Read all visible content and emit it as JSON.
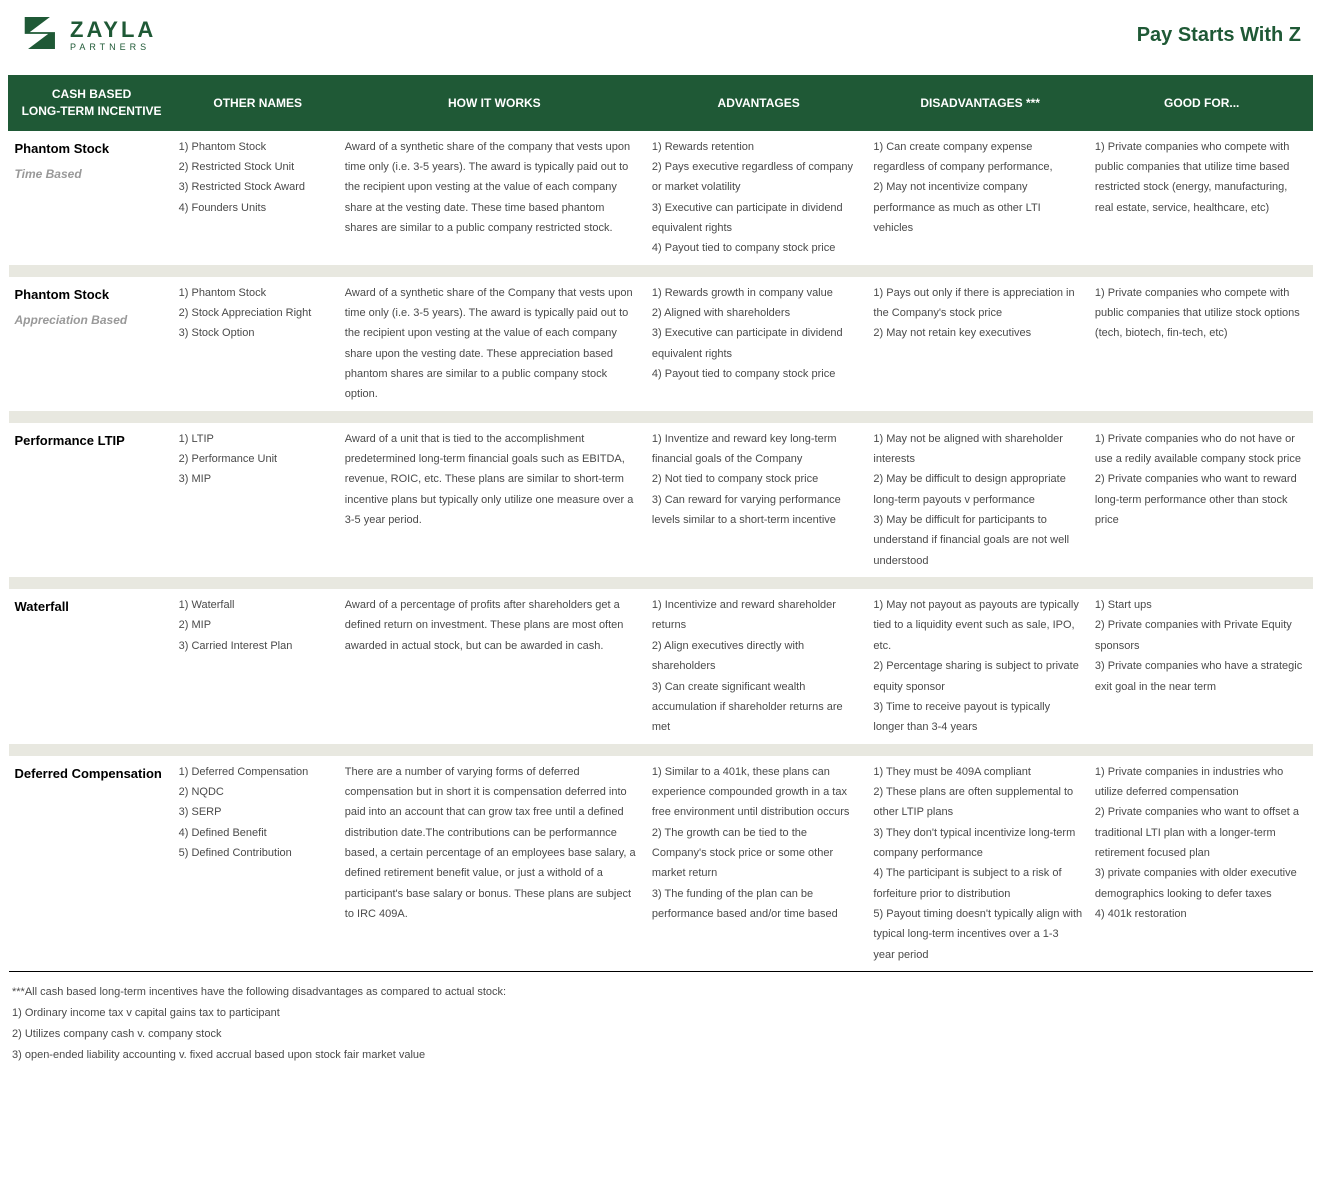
{
  "brand": {
    "logo_main": "ZAYLA",
    "logo_sub": "PARTNERS",
    "tagline": "Pay Starts With Z",
    "color_primary": "#1f5936"
  },
  "table": {
    "headers": {
      "col1_line1": "CASH BASED",
      "col1_line2": "LONG-TERM INCENTIVE",
      "col2": "OTHER NAMES",
      "col3": "HOW IT WORKS",
      "col4": "ADVANTAGES",
      "col5": "DISADVANTAGES ***",
      "col6": "GOOD FOR..."
    },
    "rows": [
      {
        "title": "Phantom Stock",
        "subtitle": "Time Based",
        "other_names": [
          "1) Phantom Stock",
          "2) Restricted Stock Unit",
          "3) Restricted Stock Award",
          "4) Founders Units"
        ],
        "how": "Award of a synthetic share of the company that vests upon time only (i.e. 3-5 years). The award is typically paid out to the recipient upon vesting at the value of each company share at the vesting date. These time based phantom shares are similar to a public company restricted stock.",
        "advantages": [
          "1) Rewards retention",
          "2) Pays executive regardless of company or market volatility",
          "3) Executive can participate in dividend equivalent rights",
          "4) Payout tied to company stock price"
        ],
        "disadvantages": [
          "1) Can create company expense regardless of company performance,",
          "2) May not incentivize company performance as much as other LTI vehicles"
        ],
        "good_for": [
          "1) Private companies who compete with public companies that utilize time based restricted stock (energy, manufacturing, real estate, service, healthcare, etc)"
        ]
      },
      {
        "title": "Phantom Stock",
        "subtitle": "Appreciation Based",
        "other_names": [
          "1) Phantom Stock",
          "2) Stock Appreciation Right",
          "3) Stock Option"
        ],
        "how": "Award of a synthetic share of the Company that vests upon time only (i.e. 3-5 years). The award is typically paid out to the recipient upon vesting at the value of each company share upon the vesting date. These appreciation based phantom shares are similar to a public company stock option.",
        "advantages": [
          "1) Rewards growth in company value",
          "2) Aligned with shareholders",
          "3) Executive can participate in dividend equivalent rights",
          "4) Payout tied to company stock price"
        ],
        "disadvantages": [
          "1) Pays out only if there is appreciation in the Company's stock price",
          "2) May not retain key executives"
        ],
        "good_for": [
          "1) Private companies who compete with public companies that utilize stock options (tech, biotech, fin-tech, etc)"
        ]
      },
      {
        "title": "Performance LTIP",
        "subtitle": "",
        "other_names": [
          "1) LTIP",
          "2) Performance Unit",
          "3) MIP"
        ],
        "how": "Award of a unit that is tied to the  accomplishment predetermined long-term financial goals such as EBITDA, revenue, ROIC, etc. These plans are similar to short-term incentive plans but typically only utilize one measure over a 3-5 year period.",
        "advantages": [
          "1) Inventize and reward key long-term financial goals of the Company",
          "2) Not tied to company stock price",
          "3) Can reward for varying performance levels similar to a short-term incentive"
        ],
        "disadvantages": [
          "1) May not be aligned with shareholder interests",
          "2) May be difficult to design appropriate long-term payouts v performance",
          "3) May be difficult for participants to understand if financial goals are not well understood"
        ],
        "good_for": [
          "1) Private companies who do not have or use a redily available company stock price",
          "2) Private companies who want to reward long-term performance other than stock price"
        ]
      },
      {
        "title": "Waterfall",
        "subtitle": "",
        "other_names": [
          "1) Waterfall",
          "2) MIP",
          "3) Carried Interest Plan"
        ],
        "how": "Award of a percentage of profits after shareholders get a defined return on investment. These plans are most often awarded in actual stock, but can be awarded in cash.",
        "advantages": [
          "1) Incentivize and reward shareholder returns",
          "2) Align executives directly with shareholders",
          "3) Can create significant wealth accumulation if shareholder returns are met"
        ],
        "disadvantages": [
          "1) May not payout as payouts are typically tied to a liquidity event such as sale, IPO, etc.",
          "2) Percentage sharing is subject to private equity sponsor",
          "3) Time to receive payout is typically longer than 3-4 years"
        ],
        "good_for": [
          "1) Start ups",
          "2) Private companies with Private Equity sponsors",
          "3) Private companies who have a strategic exit goal in the near term"
        ]
      },
      {
        "title": "Deferred Compensation",
        "subtitle": "",
        "other_names": [
          "1) Deferred Compensation",
          "2) NQDC",
          "3) SERP",
          "4) Defined Benefit",
          "5) Defined Contribution"
        ],
        "how": "There are a number of varying forms of deferred compensation but in short it is compensation deferred into paid into an account that can grow tax free until a defined distribution date.The contributions can be performannce based, a certain percentage of an employees base salary, a defined retirement benefit value, or just a withold of a participant's base salary or bonus. These plans are subject to IRC 409A.",
        "advantages": [
          "1) Similar to a 401k, these plans can experience compounded growth in a tax free environment until distribution occurs",
          "2) The growth can be tied to the Company's stock price or some other market return",
          "3) The funding of the plan can be performance based and/or time based"
        ],
        "disadvantages": [
          "1) They must be 409A compliant",
          "2) These plans are often supplemental to other LTIP plans",
          "3) They don't typical incentivize long-term company performance",
          "4) The participant is subject to a risk of forfeiture prior to distribution",
          "5) Payout timing doesn't typically align with typical long-term incentives over a 1-3 year period"
        ],
        "good_for": [
          "1) Private companies in industries who utilize deferred compensation",
          "2) Private companies who want to offset a traditional LTI plan with a longer-term retirement focused plan",
          "3) private companies with older executive demographics looking to defer taxes",
          "4) 401k restoration"
        ]
      }
    ]
  },
  "footnote": {
    "lead": "***All cash based long-term incentives have the following disadvantages as compared to actual stock:",
    "items": [
      "1) Ordinary income tax v capital gains tax to participant",
      "2) Utilizes company cash v. company stock",
      "3) open-ended liability accounting v. fixed accrual based upon stock fair market value"
    ]
  }
}
